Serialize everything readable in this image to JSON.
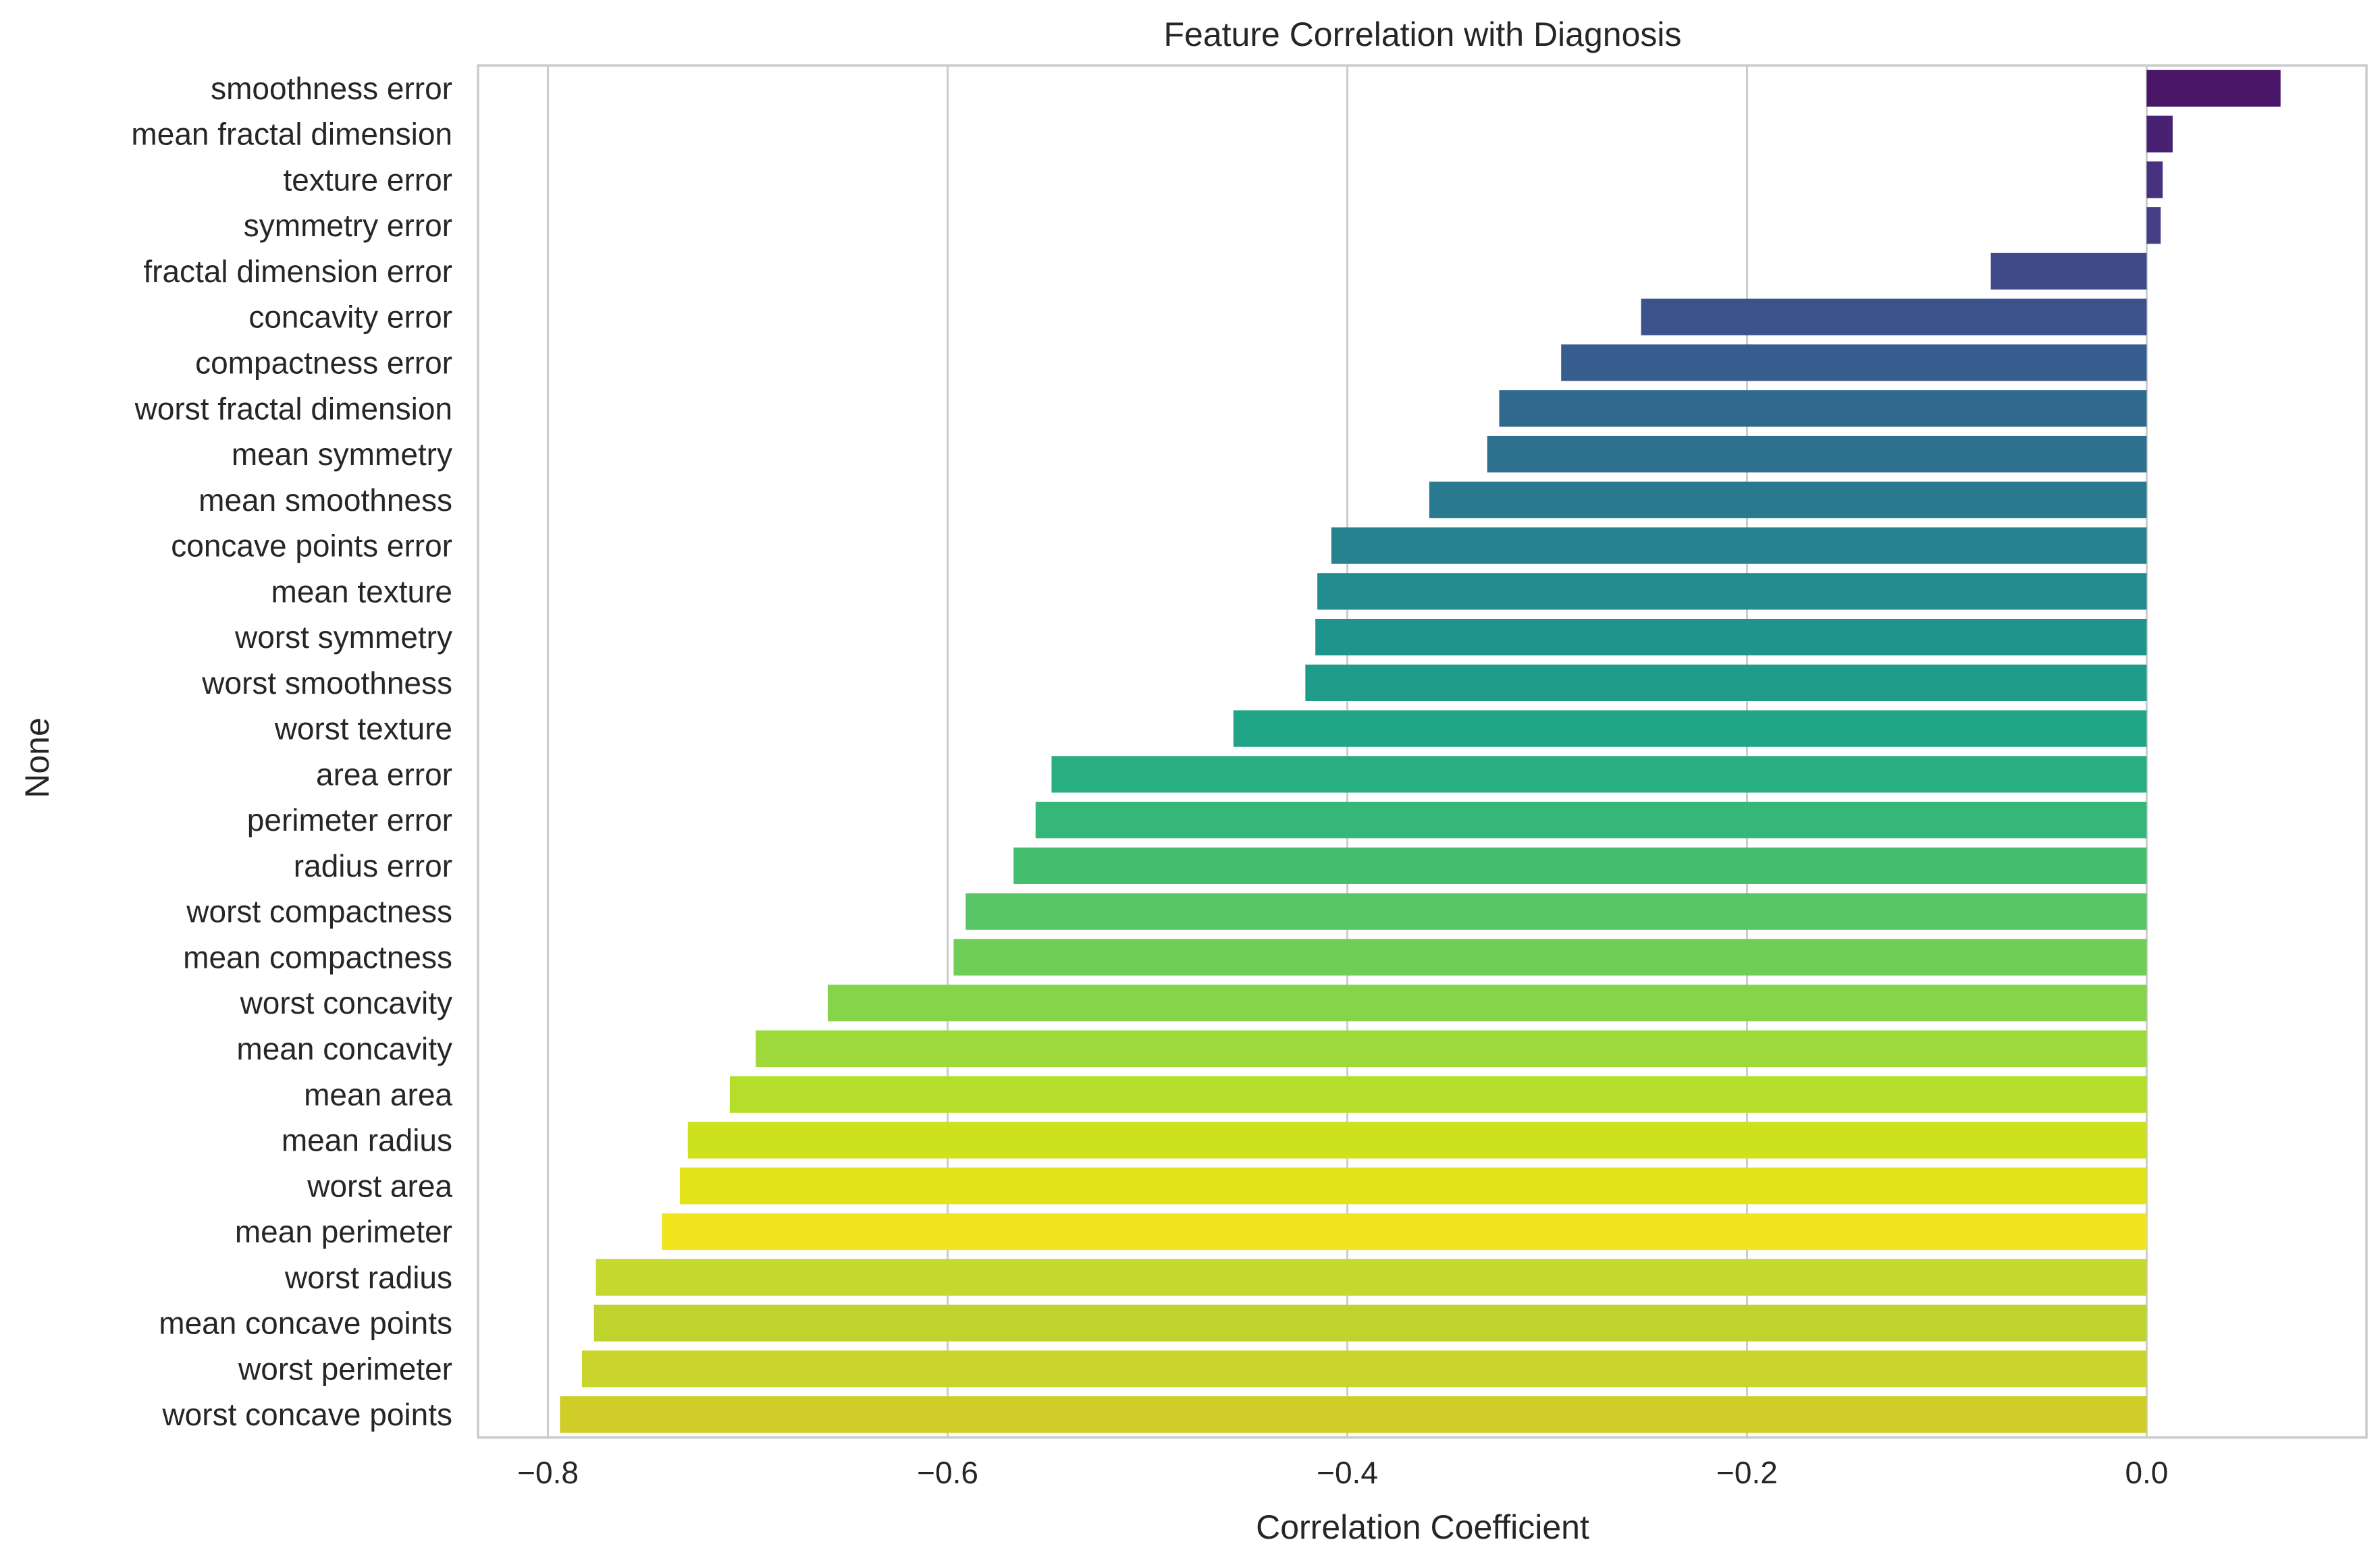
{
  "chart_data": {
    "type": "bar",
    "orientation": "horizontal",
    "title": "Feature Correlation with Diagnosis",
    "xlabel": "Correlation Coefficient",
    "ylabel": "None",
    "xlim": [
      -0.835,
      0.11
    ],
    "xticks": [
      -0.8,
      -0.6,
      -0.4,
      -0.2,
      0.0
    ],
    "xtick_labels": [
      "−0.8",
      "−0.6",
      "−0.4",
      "−0.2",
      "0.0"
    ],
    "grid": true,
    "palette": "viridis",
    "colors": [
      "#481567",
      "#482173",
      "#46327e",
      "#433e85",
      "#3f4a8a",
      "#3b528b",
      "#365d8d",
      "#31688e",
      "#2d718e",
      "#297a8e",
      "#26828e",
      "#228b8d",
      "#1f948c",
      "#1e9c89",
      "#20a486",
      "#28ae80",
      "#35b779",
      "#44bf70",
      "#56c667",
      "#6ece58",
      "#85d44a",
      "#9dd93b",
      "#b5de2b",
      "#cde11d",
      "#e2e418",
      "#f1e51d",
      "#c5d82e",
      "#bfd32f",
      "#c9d52c",
      "#d0cd29"
    ],
    "categories": [
      "smoothness error",
      "mean fractal dimension",
      "texture error",
      "symmetry error",
      "fractal dimension error",
      "concavity error",
      "compactness error",
      "worst fractal dimension",
      "mean symmetry",
      "mean smoothness",
      "concave points error",
      "mean texture",
      "worst symmetry",
      "worst smoothness",
      "worst texture",
      "area error",
      "perimeter error",
      "radius error",
      "worst compactness",
      "mean compactness",
      "worst concavity",
      "mean concavity",
      "mean area",
      "mean radius",
      "worst area",
      "mean perimeter",
      "worst radius",
      "mean concave points",
      "worst perimeter",
      "worst concave points"
    ],
    "values": [
      0.067,
      0.013,
      0.008,
      0.007,
      -0.078,
      -0.253,
      -0.293,
      -0.324,
      -0.33,
      -0.359,
      -0.408,
      -0.415,
      -0.416,
      -0.421,
      -0.457,
      -0.548,
      -0.556,
      -0.567,
      -0.591,
      -0.597,
      -0.66,
      -0.696,
      -0.709,
      -0.73,
      -0.734,
      -0.743,
      -0.776,
      -0.777,
      -0.783,
      -0.794
    ]
  }
}
